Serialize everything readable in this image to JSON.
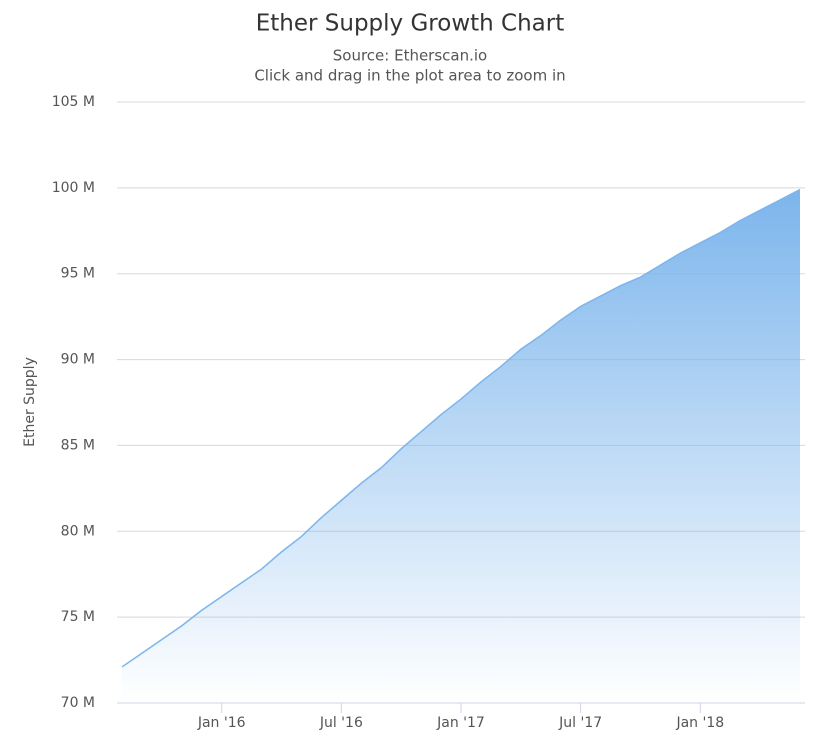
{
  "chart_data": {
    "type": "area",
    "title": "Ether Supply Growth Chart",
    "subtitle": "Source: Etherscan.io",
    "note": "Click and drag in the plot area to zoom in",
    "y_label": "Ether Supply",
    "x": [
      "2015-08",
      "2015-09",
      "2015-10",
      "2015-11",
      "2015-12",
      "2016-01",
      "2016-02",
      "2016-03",
      "2016-04",
      "2016-05",
      "2016-06",
      "2016-07",
      "2016-08",
      "2016-09",
      "2016-10",
      "2016-11",
      "2016-12",
      "2017-01",
      "2017-02",
      "2017-03",
      "2017-04",
      "2017-05",
      "2017-06",
      "2017-07",
      "2017-08",
      "2017-09",
      "2017-10",
      "2017-11",
      "2017-12",
      "2018-01",
      "2018-02",
      "2018-03",
      "2018-04",
      "2018-05",
      "2018-06"
    ],
    "series": [
      {
        "name": "Ether Supply",
        "color": "#7cb5ec",
        "values": [
          72100000,
          72900000,
          73700000,
          74500000,
          75400000,
          76200000,
          77000000,
          77800000,
          78800000,
          79700000,
          80800000,
          81800000,
          82800000,
          83700000,
          84800000,
          85800000,
          86800000,
          87700000,
          88700000,
          89600000,
          90600000,
          91400000,
          92300000,
          93100000,
          93700000,
          94300000,
          94800000,
          95500000,
          96200000,
          96800000,
          97400000,
          98100000,
          98700000,
          99300000,
          99900000
        ]
      }
    ],
    "xlim": [
      "2015-08",
      "2018-06"
    ],
    "xticks": [
      {
        "value": "2016-01",
        "label": "Jan '16"
      },
      {
        "value": "2016-07",
        "label": "Jul '16"
      },
      {
        "value": "2017-01",
        "label": "Jan '17"
      },
      {
        "value": "2017-07",
        "label": "Jul '17"
      },
      {
        "value": "2018-01",
        "label": "Jan '18"
      }
    ],
    "ylim": [
      70000000,
      105000000
    ],
    "yticks": [
      {
        "value": 70000000,
        "label": "70 M"
      },
      {
        "value": 75000000,
        "label": "75 M"
      },
      {
        "value": 80000000,
        "label": "80 M"
      },
      {
        "value": 85000000,
        "label": "85 M"
      },
      {
        "value": 90000000,
        "label": "90 M"
      },
      {
        "value": 95000000,
        "label": "95 M"
      },
      {
        "value": 100000000,
        "label": "100 M"
      },
      {
        "value": 105000000,
        "label": "105 M"
      }
    ],
    "grid": true
  }
}
